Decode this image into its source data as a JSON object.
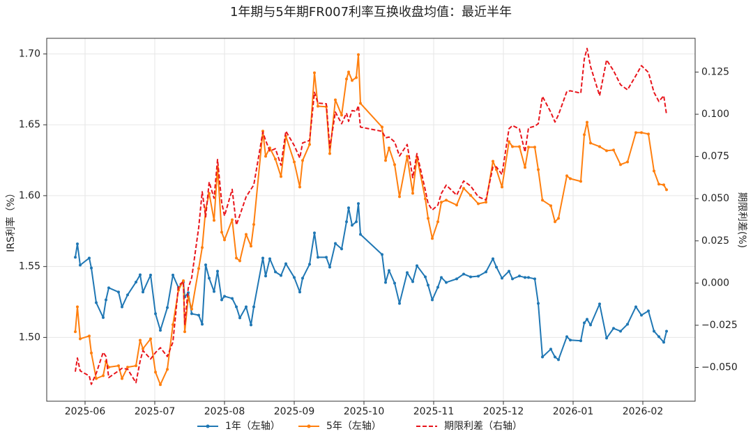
{
  "chart_data": {
    "type": "line",
    "title": "1年期与5年期FR007利率互换收盘均值：最近半年",
    "ylabel": "IRS利率（%）",
    "y2label": "期限利差(%)",
    "x": [
      5.86,
      5.89,
      5.93,
      6.06,
      6.09,
      6.16,
      6.26,
      6.3,
      6.34,
      6.48,
      6.53,
      6.61,
      6.73,
      6.79,
      6.83,
      6.94,
      7.01,
      7.08,
      7.18,
      7.26,
      7.34,
      7.41,
      7.43,
      7.48,
      7.53,
      7.63,
      7.68,
      7.73,
      7.78,
      7.85,
      7.9,
      7.96,
      8.0,
      8.11,
      8.17,
      8.22,
      8.31,
      8.38,
      8.42,
      8.55,
      8.59,
      8.65,
      8.73,
      8.81,
      8.88,
      9.0,
      9.08,
      9.12,
      9.22,
      9.29,
      9.34,
      9.46,
      9.51,
      9.59,
      9.68,
      9.75,
      9.78,
      9.83,
      9.89,
      9.92,
      9.95,
      10.26,
      10.31,
      10.36,
      10.44,
      10.51,
      10.62,
      10.7,
      10.76,
      10.88,
      10.92,
      10.98,
      11.06,
      11.11,
      11.18,
      11.33,
      11.43,
      11.53,
      11.64,
      11.75,
      11.85,
      11.9,
      11.98,
      12.08,
      12.13,
      12.23,
      12.31,
      12.36,
      12.45,
      12.5,
      12.56,
      12.68,
      12.74,
      12.79,
      12.91,
      12.96,
      13.11,
      13.16,
      13.2,
      13.25,
      13.38,
      13.48,
      13.58,
      13.68,
      13.78,
      13.9,
      13.98,
      14.08,
      14.16,
      14.23,
      14.3,
      14.34
    ],
    "series": [
      {
        "name": "1年（左轴）",
        "color": "#1f77b4",
        "dash": false,
        "marker": true,
        "axis": "y",
        "values": [
          1.5565,
          1.566,
          1.551,
          1.556,
          1.549,
          1.5245,
          1.514,
          1.5265,
          1.535,
          1.532,
          1.5215,
          1.53,
          1.539,
          1.5442,
          1.532,
          1.544,
          1.5167,
          1.505,
          1.521,
          1.544,
          1.535,
          1.539,
          1.5285,
          1.5315,
          1.5167,
          1.5157,
          1.5093,
          1.5512,
          1.5418,
          1.5324,
          1.5467,
          1.5265,
          1.529,
          1.5275,
          1.5216,
          1.5138,
          1.5216,
          1.5088,
          1.5216,
          1.556,
          1.5433,
          1.5555,
          1.5462,
          1.5437,
          1.552,
          1.5423,
          1.532,
          1.5418,
          1.5516,
          1.5737,
          1.5565,
          1.5565,
          1.5496,
          1.5663,
          1.5624,
          1.5816,
          1.5914,
          1.5791,
          1.5816,
          1.5944,
          1.5727,
          1.5585,
          1.5388,
          1.5472,
          1.5383,
          1.524,
          1.5457,
          1.5393,
          1.5506,
          1.5427,
          1.5369,
          1.5265,
          1.5354,
          1.5423,
          1.5388,
          1.5413,
          1.5447,
          1.5427,
          1.5432,
          1.5462,
          1.5555,
          1.5496,
          1.5418,
          1.5467,
          1.5413,
          1.5433,
          1.5423,
          1.5423,
          1.5413,
          1.524,
          1.4862,
          1.4917,
          1.4862,
          1.4843,
          1.5005,
          1.4981,
          1.4976,
          1.5103,
          1.5128,
          1.5088,
          1.5236,
          1.4995,
          1.5064,
          1.5044,
          1.5093,
          1.5216,
          1.5157,
          1.5187,
          1.5044,
          1.5005,
          1.4966,
          1.5044
        ]
      },
      {
        "name": "5年（左轴）",
        "color": "#ff7f0e",
        "dash": false,
        "marker": true,
        "axis": "y",
        "values": [
          1.504,
          1.5216,
          1.499,
          1.501,
          1.489,
          1.471,
          1.473,
          1.483,
          1.479,
          1.48,
          1.471,
          1.479,
          1.48,
          1.498,
          1.492,
          1.499,
          1.4755,
          1.4667,
          1.4775,
          1.509,
          1.5334,
          1.54,
          1.504,
          1.5285,
          1.52,
          1.5486,
          1.5634,
          1.5904,
          1.6017,
          1.5826,
          1.6199,
          1.5742,
          1.5688,
          1.583,
          1.556,
          1.554,
          1.5727,
          1.5644,
          1.5797,
          1.6455,
          1.6278,
          1.6337,
          1.6258,
          1.6135,
          1.642,
          1.6238,
          1.6061,
          1.6248,
          1.6361,
          1.6867,
          1.6631,
          1.6627,
          1.6297,
          1.6676,
          1.6568,
          1.6823,
          1.6872,
          1.6813,
          1.6833,
          1.6995,
          1.6651,
          1.6484,
          1.6248,
          1.6337,
          1.6219,
          1.5993,
          1.6278,
          1.6017,
          1.6273,
          1.5978,
          1.584,
          1.5698,
          1.5816,
          1.5954,
          1.5968,
          1.5934,
          1.6052,
          1.6002,
          1.5943,
          1.5954,
          1.6243,
          1.6184,
          1.6061,
          1.6381,
          1.6346,
          1.6346,
          1.6199,
          1.6342,
          1.6342,
          1.6184,
          1.5968,
          1.5929,
          1.5816,
          1.584,
          1.614,
          1.612,
          1.6101,
          1.643,
          1.6518,
          1.6371,
          1.6346,
          1.6317,
          1.6322,
          1.6219,
          1.6238,
          1.6445,
          1.6445,
          1.6435,
          1.6174,
          1.6081,
          1.6076,
          1.6042
        ]
      },
      {
        "name": "期限利差（右轴）",
        "color": "#e8141b",
        "dash": true,
        "marker": false,
        "axis": "y2",
        "values": [
          -0.0525,
          -0.0444,
          -0.052,
          -0.055,
          -0.06,
          -0.0535,
          -0.041,
          -0.0435,
          -0.056,
          -0.052,
          -0.0505,
          -0.051,
          -0.059,
          -0.0462,
          -0.04,
          -0.045,
          -0.0412,
          -0.0383,
          -0.0435,
          -0.035,
          -0.0016,
          0.001,
          -0.0245,
          -0.003,
          0.0033,
          0.0329,
          0.0541,
          0.0392,
          0.0599,
          0.0502,
          0.0732,
          0.0477,
          0.0398,
          0.0555,
          0.0344,
          0.0402,
          0.0511,
          0.0556,
          0.0581,
          0.0895,
          0.0845,
          0.0782,
          0.0796,
          0.0698,
          0.09,
          0.0815,
          0.0741,
          0.083,
          0.0845,
          0.113,
          0.1066,
          0.1062,
          0.0801,
          0.1013,
          0.0944,
          0.1007,
          0.0958,
          0.1022,
          0.1017,
          0.1051,
          0.0924,
          0.0899,
          0.086,
          0.0865,
          0.0836,
          0.0753,
          0.0821,
          0.0624,
          0.0767,
          0.0551,
          0.0471,
          0.0433,
          0.0462,
          0.0531,
          0.058,
          0.0521,
          0.0605,
          0.0575,
          0.0511,
          0.0492,
          0.0688,
          0.0688,
          0.0643,
          0.0914,
          0.0933,
          0.0913,
          0.0776,
          0.0919,
          0.0929,
          0.0944,
          0.1106,
          0.1012,
          0.0954,
          0.0997,
          0.1135,
          0.1139,
          0.1125,
          0.1327,
          0.139,
          0.1283,
          0.111,
          0.1322,
          0.1258,
          0.1175,
          0.1145,
          0.1229,
          0.1288,
          0.1248,
          0.113,
          0.1076,
          0.111,
          0.0998
        ]
      }
    ],
    "xlim": [
      5.45,
      14.75
    ],
    "xticks": [
      {
        "value": 6,
        "label": "2025-06"
      },
      {
        "value": 7,
        "label": "2025-07"
      },
      {
        "value": 8,
        "label": "2025-08"
      },
      {
        "value": 9,
        "label": "2025-09"
      },
      {
        "value": 10,
        "label": "2025-10"
      },
      {
        "value": 11,
        "label": "2025-11"
      },
      {
        "value": 12,
        "label": "2025-12"
      },
      {
        "value": 13,
        "label": "2026-01"
      },
      {
        "value": 14,
        "label": "2026-02"
      }
    ],
    "ylim": [
      1.455,
      1.711
    ],
    "yticks": [
      {
        "value": 1.5,
        "label": "1.50"
      },
      {
        "value": 1.55,
        "label": "1.55"
      },
      {
        "value": 1.6,
        "label": "1.60"
      },
      {
        "value": 1.65,
        "label": "1.65"
      },
      {
        "value": 1.7,
        "label": "1.70"
      }
    ],
    "y2lim": [
      -0.07,
      0.145
    ],
    "y2ticks": [
      {
        "value": -0.05,
        "label": "−0.050"
      },
      {
        "value": -0.025,
        "label": "−0.025"
      },
      {
        "value": 0,
        "label": "0.000"
      },
      {
        "value": 0.025,
        "label": "0.025"
      },
      {
        "value": 0.05,
        "label": "0.050"
      },
      {
        "value": 0.075,
        "label": "0.075"
      },
      {
        "value": 0.1,
        "label": "0.100"
      },
      {
        "value": 0.125,
        "label": "0.125"
      }
    ],
    "grid": true,
    "legend": "bottom"
  }
}
